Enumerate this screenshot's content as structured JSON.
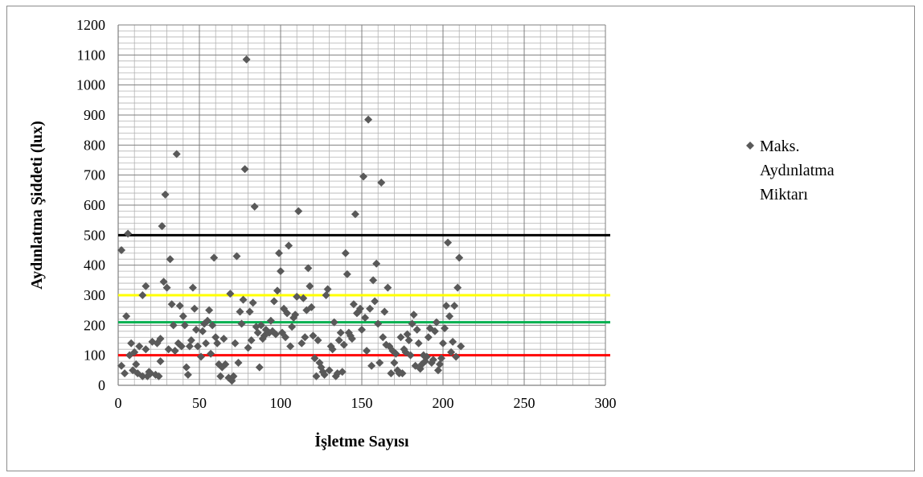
{
  "chart_data": {
    "type": "scatter",
    "title": "",
    "xlabel": "İşletme Sayısı",
    "ylabel": "Aydınlatma Şiddeti (lux)",
    "xlim": [
      0,
      300
    ],
    "ylim": [
      0,
      1200
    ],
    "x_ticks": [
      "0",
      "50",
      "100",
      "150",
      "200",
      "250",
      "300"
    ],
    "y_ticks": [
      "0",
      "100",
      "200",
      "300",
      "400",
      "500",
      "600",
      "700",
      "800",
      "900",
      "1000",
      "1100",
      "1200"
    ],
    "grid": "on",
    "legend_position": "right",
    "series": [
      {
        "name": "Maks. Aydınlatma Miktarı",
        "legend_lines": [
          "Maks.",
          "Aydınlatma",
          "Miktarı"
        ],
        "color": "#595959",
        "marker": "diamond",
        "points": [
          [
            2,
            65
          ],
          [
            2,
            450
          ],
          [
            4,
            40
          ],
          [
            5,
            230
          ],
          [
            6,
            505
          ],
          [
            7,
            100
          ],
          [
            8,
            140
          ],
          [
            9,
            50
          ],
          [
            10,
            110
          ],
          [
            11,
            70
          ],
          [
            12,
            40
          ],
          [
            13,
            130
          ],
          [
            15,
            30
          ],
          [
            15,
            300
          ],
          [
            17,
            120
          ],
          [
            17,
            330
          ],
          [
            18,
            30
          ],
          [
            19,
            45
          ],
          [
            20,
            40
          ],
          [
            21,
            145
          ],
          [
            23,
            35
          ],
          [
            24,
            140
          ],
          [
            25,
            30
          ],
          [
            26,
            80
          ],
          [
            26,
            155
          ],
          [
            27,
            530
          ],
          [
            28,
            345
          ],
          [
            29,
            635
          ],
          [
            30,
            325
          ],
          [
            31,
            120
          ],
          [
            32,
            420
          ],
          [
            33,
            270
          ],
          [
            34,
            200
          ],
          [
            35,
            115
          ],
          [
            36,
            770
          ],
          [
            37,
            140
          ],
          [
            38,
            265
          ],
          [
            39,
            130
          ],
          [
            40,
            230
          ],
          [
            41,
            200
          ],
          [
            42,
            60
          ],
          [
            43,
            35
          ],
          [
            44,
            130
          ],
          [
            45,
            150
          ],
          [
            46,
            325
          ],
          [
            47,
            255
          ],
          [
            48,
            185
          ],
          [
            49,
            130
          ],
          [
            51,
            95
          ],
          [
            52,
            180
          ],
          [
            53,
            205
          ],
          [
            54,
            140
          ],
          [
            55,
            215
          ],
          [
            56,
            250
          ],
          [
            57,
            105
          ],
          [
            58,
            200
          ],
          [
            59,
            425
          ],
          [
            60,
            160
          ],
          [
            61,
            140
          ],
          [
            62,
            70
          ],
          [
            63,
            30
          ],
          [
            64,
            60
          ],
          [
            65,
            155
          ],
          [
            66,
            70
          ],
          [
            68,
            25
          ],
          [
            69,
            305
          ],
          [
            70,
            15
          ],
          [
            71,
            30
          ],
          [
            72,
            140
          ],
          [
            73,
            430
          ],
          [
            74,
            75
          ],
          [
            75,
            245
          ],
          [
            76,
            205
          ],
          [
            77,
            285
          ],
          [
            78,
            720
          ],
          [
            79,
            1085
          ],
          [
            80,
            125
          ],
          [
            81,
            245
          ],
          [
            82,
            150
          ],
          [
            83,
            275
          ],
          [
            84,
            595
          ],
          [
            85,
            195
          ],
          [
            86,
            175
          ],
          [
            87,
            60
          ],
          [
            88,
            200
          ],
          [
            89,
            155
          ],
          [
            90,
            165
          ],
          [
            91,
            185
          ],
          [
            93,
            175
          ],
          [
            94,
            215
          ],
          [
            95,
            180
          ],
          [
            96,
            280
          ],
          [
            97,
            170
          ],
          [
            98,
            315
          ],
          [
            99,
            440
          ],
          [
            100,
            380
          ],
          [
            101,
            175
          ],
          [
            102,
            255
          ],
          [
            103,
            160
          ],
          [
            104,
            240
          ],
          [
            105,
            465
          ],
          [
            106,
            130
          ],
          [
            107,
            195
          ],
          [
            108,
            225
          ],
          [
            109,
            235
          ],
          [
            110,
            295
          ],
          [
            111,
            580
          ],
          [
            113,
            140
          ],
          [
            114,
            290
          ],
          [
            115,
            160
          ],
          [
            116,
            250
          ],
          [
            117,
            390
          ],
          [
            118,
            330
          ],
          [
            119,
            260
          ],
          [
            120,
            165
          ],
          [
            121,
            90
          ],
          [
            122,
            30
          ],
          [
            123,
            150
          ],
          [
            124,
            75
          ],
          [
            125,
            60
          ],
          [
            126,
            45
          ],
          [
            127,
            35
          ],
          [
            128,
            300
          ],
          [
            129,
            320
          ],
          [
            130,
            50
          ],
          [
            131,
            130
          ],
          [
            132,
            120
          ],
          [
            133,
            210
          ],
          [
            134,
            30
          ],
          [
            135,
            40
          ],
          [
            136,
            150
          ],
          [
            137,
            175
          ],
          [
            138,
            45
          ],
          [
            139,
            135
          ],
          [
            140,
            440
          ],
          [
            141,
            370
          ],
          [
            142,
            175
          ],
          [
            143,
            165
          ],
          [
            144,
            155
          ],
          [
            145,
            270
          ],
          [
            146,
            570
          ],
          [
            147,
            240
          ],
          [
            148,
            245
          ],
          [
            149,
            255
          ],
          [
            150,
            185
          ],
          [
            151,
            695
          ],
          [
            152,
            225
          ],
          [
            153,
            115
          ],
          [
            154,
            885
          ],
          [
            155,
            255
          ],
          [
            156,
            65
          ],
          [
            157,
            350
          ],
          [
            158,
            280
          ],
          [
            159,
            405
          ],
          [
            160,
            205
          ],
          [
            161,
            75
          ],
          [
            162,
            675
          ],
          [
            163,
            160
          ],
          [
            164,
            245
          ],
          [
            165,
            135
          ],
          [
            166,
            325
          ],
          [
            167,
            130
          ],
          [
            168,
            40
          ],
          [
            169,
            115
          ],
          [
            170,
            75
          ],
          [
            171,
            105
          ],
          [
            172,
            50
          ],
          [
            173,
            40
          ],
          [
            174,
            160
          ],
          [
            175,
            40
          ],
          [
            176,
            120
          ],
          [
            177,
            110
          ],
          [
            178,
            170
          ],
          [
            179,
            150
          ],
          [
            180,
            100
          ],
          [
            181,
            205
          ],
          [
            182,
            235
          ],
          [
            183,
            65
          ],
          [
            184,
            185
          ],
          [
            185,
            140
          ],
          [
            186,
            55
          ],
          [
            187,
            70
          ],
          [
            188,
            100
          ],
          [
            189,
            80
          ],
          [
            190,
            95
          ],
          [
            191,
            160
          ],
          [
            192,
            190
          ],
          [
            193,
            75
          ],
          [
            194,
            85
          ],
          [
            195,
            180
          ],
          [
            196,
            210
          ],
          [
            197,
            50
          ],
          [
            198,
            70
          ],
          [
            199,
            90
          ],
          [
            200,
            140
          ],
          [
            201,
            190
          ],
          [
            202,
            265
          ],
          [
            203,
            475
          ],
          [
            204,
            230
          ],
          [
            205,
            110
          ],
          [
            206,
            145
          ],
          [
            207,
            265
          ],
          [
            208,
            95
          ],
          [
            209,
            325
          ],
          [
            210,
            425
          ],
          [
            211,
            130
          ]
        ]
      }
    ],
    "reference_lines": [
      {
        "y": 500,
        "color": "#000000"
      },
      {
        "y": 300,
        "color": "#ffff00"
      },
      {
        "y": 210,
        "color": "#00b050"
      },
      {
        "y": 100,
        "color": "#ff0000"
      }
    ]
  }
}
